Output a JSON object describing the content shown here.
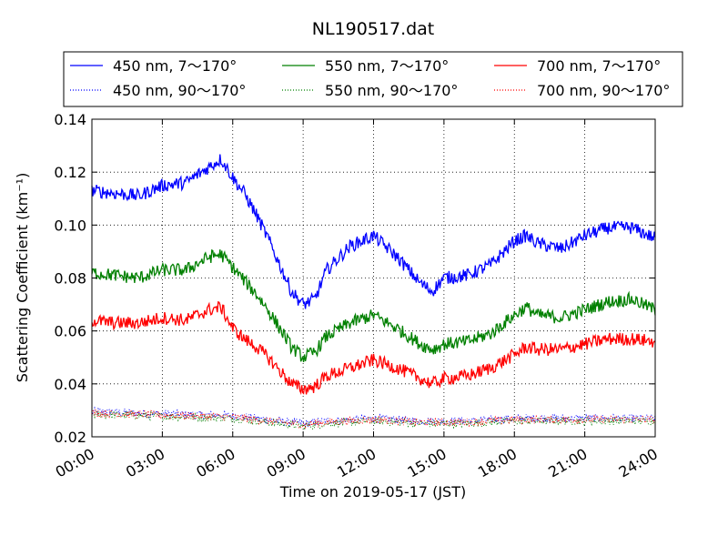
{
  "chart_data": {
    "type": "line",
    "title": "NL190517.dat",
    "xlabel": "Time on 2019-05-17 (JST)",
    "ylabel": "Scattering Coefficient (km⁻¹)",
    "xlim": [
      0,
      24
    ],
    "ylim": [
      0.02,
      0.14
    ],
    "x_tick_labels": [
      "00:00",
      "03:00",
      "06:00",
      "09:00",
      "12:00",
      "15:00",
      "18:00",
      "21:00",
      "24:00"
    ],
    "x_ticks": [
      0,
      3,
      6,
      9,
      12,
      15,
      18,
      21,
      24
    ],
    "y_tick_labels": [
      "0.02",
      "0.04",
      "0.06",
      "0.08",
      "0.10",
      "0.12",
      "0.14"
    ],
    "y_ticks": [
      0.02,
      0.04,
      0.06,
      0.08,
      0.1,
      0.12,
      0.14
    ],
    "grid": true,
    "legend_position": "top",
    "x_unit": "hours",
    "series": [
      {
        "name": "450 nm, 7～170°",
        "color": "#0000ff",
        "style": "solid",
        "x": [
          0,
          1,
          2,
          3,
          4,
          5,
          5.5,
          6,
          6.5,
          7,
          7.5,
          8,
          8.5,
          9,
          9.5,
          10,
          11,
          12,
          13,
          14,
          14.5,
          15,
          16,
          17,
          18,
          18.5,
          19,
          20,
          21,
          22,
          23,
          24
        ],
        "values": [
          0.113,
          0.112,
          0.111,
          0.115,
          0.116,
          0.122,
          0.125,
          0.118,
          0.112,
          0.104,
          0.095,
          0.085,
          0.075,
          0.07,
          0.072,
          0.083,
          0.092,
          0.096,
          0.088,
          0.078,
          0.075,
          0.08,
          0.081,
          0.085,
          0.094,
          0.096,
          0.093,
          0.091,
          0.096,
          0.099,
          0.099,
          0.095
        ]
      },
      {
        "name": "550 nm, 7～170°",
        "color": "#008000",
        "style": "solid",
        "x": [
          0,
          1,
          2,
          3,
          4,
          5,
          5.5,
          6,
          6.5,
          7,
          7.5,
          8,
          8.5,
          9,
          9.5,
          10,
          11,
          12,
          13,
          14,
          14.5,
          15,
          16,
          17,
          18,
          18.5,
          19,
          20,
          21,
          22,
          23,
          24
        ],
        "values": [
          0.082,
          0.081,
          0.08,
          0.083,
          0.083,
          0.088,
          0.089,
          0.084,
          0.079,
          0.074,
          0.068,
          0.061,
          0.054,
          0.05,
          0.052,
          0.058,
          0.063,
          0.066,
          0.061,
          0.055,
          0.053,
          0.055,
          0.056,
          0.059,
          0.066,
          0.069,
          0.066,
          0.065,
          0.068,
          0.071,
          0.072,
          0.068
        ]
      },
      {
        "name": "700 nm, 7～170°",
        "color": "#ff0000",
        "style": "solid",
        "x": [
          0,
          1,
          2,
          3,
          4,
          5,
          5.5,
          6,
          6.5,
          7,
          7.5,
          8,
          8.5,
          9,
          9.5,
          10,
          11,
          12,
          13,
          14,
          14.5,
          15,
          16,
          17,
          18,
          18.5,
          19,
          20,
          21,
          22,
          23,
          24
        ],
        "values": [
          0.064,
          0.063,
          0.063,
          0.065,
          0.064,
          0.068,
          0.069,
          0.061,
          0.057,
          0.054,
          0.05,
          0.045,
          0.04,
          0.038,
          0.039,
          0.043,
          0.046,
          0.049,
          0.046,
          0.042,
          0.04,
          0.042,
          0.043,
          0.046,
          0.051,
          0.054,
          0.053,
          0.053,
          0.055,
          0.057,
          0.057,
          0.056
        ]
      },
      {
        "name": "450 nm, 90～170°",
        "color": "#0000ff",
        "style": "dotted",
        "x": [
          0,
          2,
          4,
          6,
          8,
          9,
          10,
          12,
          14,
          16,
          18,
          20,
          22,
          24
        ],
        "values": [
          0.0295,
          0.029,
          0.0285,
          0.028,
          0.026,
          0.025,
          0.026,
          0.027,
          0.026,
          0.026,
          0.027,
          0.027,
          0.027,
          0.027
        ]
      },
      {
        "name": "550 nm, 90～170°",
        "color": "#008000",
        "style": "dotted",
        "x": [
          0,
          2,
          4,
          6,
          8,
          9,
          10,
          12,
          14,
          16,
          18,
          20,
          22,
          24
        ],
        "values": [
          0.0285,
          0.028,
          0.0275,
          0.027,
          0.025,
          0.024,
          0.025,
          0.026,
          0.025,
          0.025,
          0.026,
          0.026,
          0.026,
          0.026
        ]
      },
      {
        "name": "700 nm, 90～170°",
        "color": "#ff0000",
        "style": "dotted",
        "x": [
          0,
          2,
          4,
          6,
          8,
          9,
          10,
          12,
          14,
          16,
          18,
          20,
          22,
          24
        ],
        "values": [
          0.029,
          0.0285,
          0.028,
          0.0275,
          0.0255,
          0.0245,
          0.0255,
          0.0265,
          0.0255,
          0.0255,
          0.0265,
          0.0265,
          0.0265,
          0.0265
        ]
      }
    ]
  }
}
